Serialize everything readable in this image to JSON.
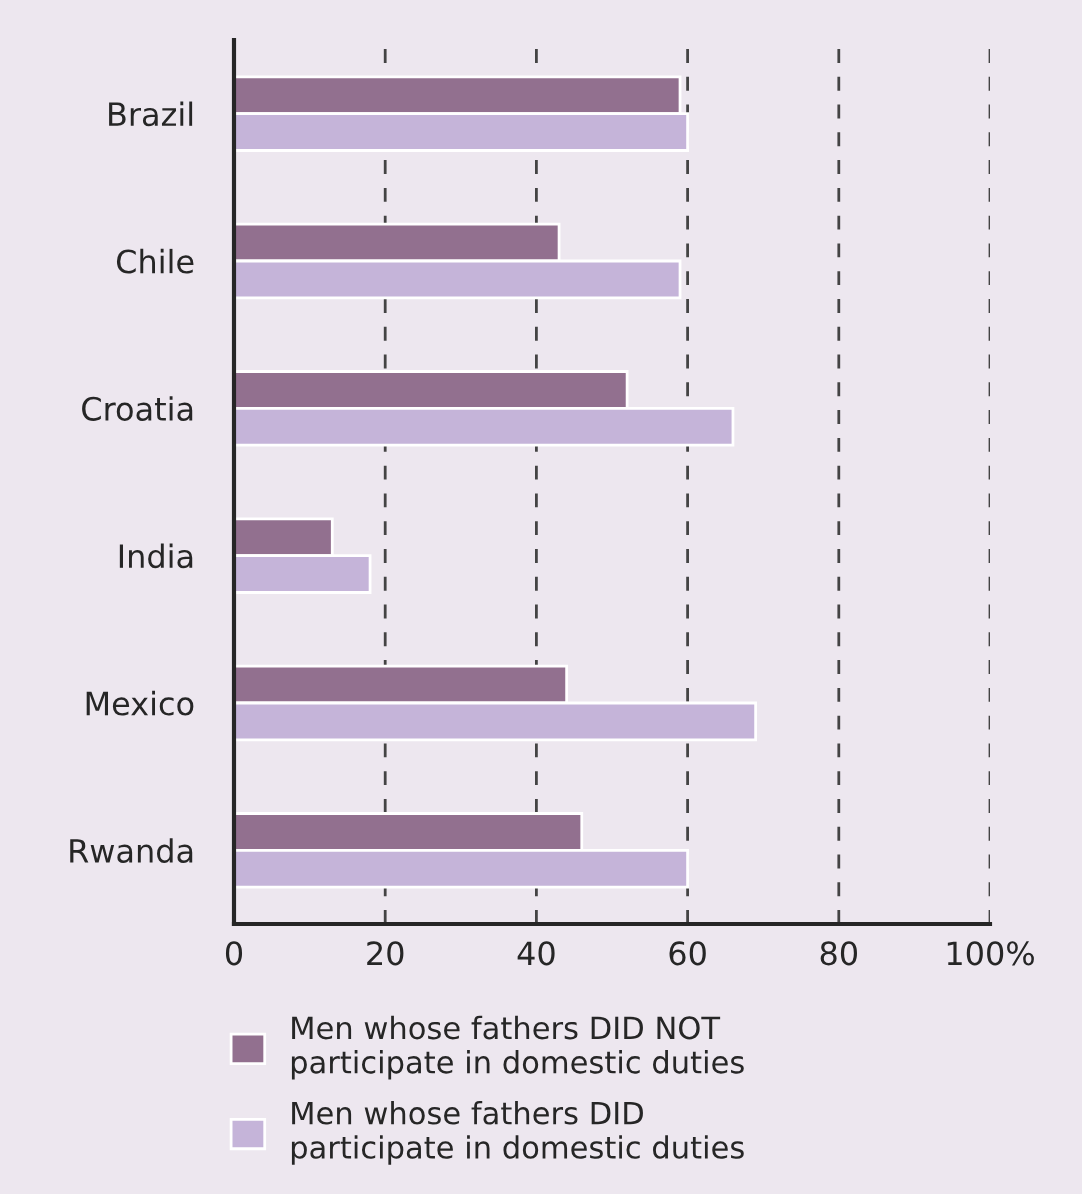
{
  "chart_data": {
    "type": "bar",
    "orientation": "horizontal",
    "categories": [
      "Brazil",
      "Chile",
      "Croatia",
      "India",
      "Mexico",
      "Rwanda"
    ],
    "series": [
      {
        "name": "Men whose fathers DID NOT\nparticipate in domestic duties",
        "color": "#92708f",
        "values": [
          59,
          43,
          52,
          13,
          44,
          46
        ]
      },
      {
        "name": "Men whose fathers DID\nparticipate in domestic duties",
        "color": "#c5b4d9",
        "values": [
          60,
          59,
          66,
          18,
          69,
          60
        ]
      }
    ],
    "xlim": [
      0,
      100
    ],
    "xticks": [
      0,
      20,
      40,
      60,
      80,
      {
        "value": 100,
        "label": "100%"
      }
    ],
    "grid": "x",
    "legend": "bottom"
  }
}
